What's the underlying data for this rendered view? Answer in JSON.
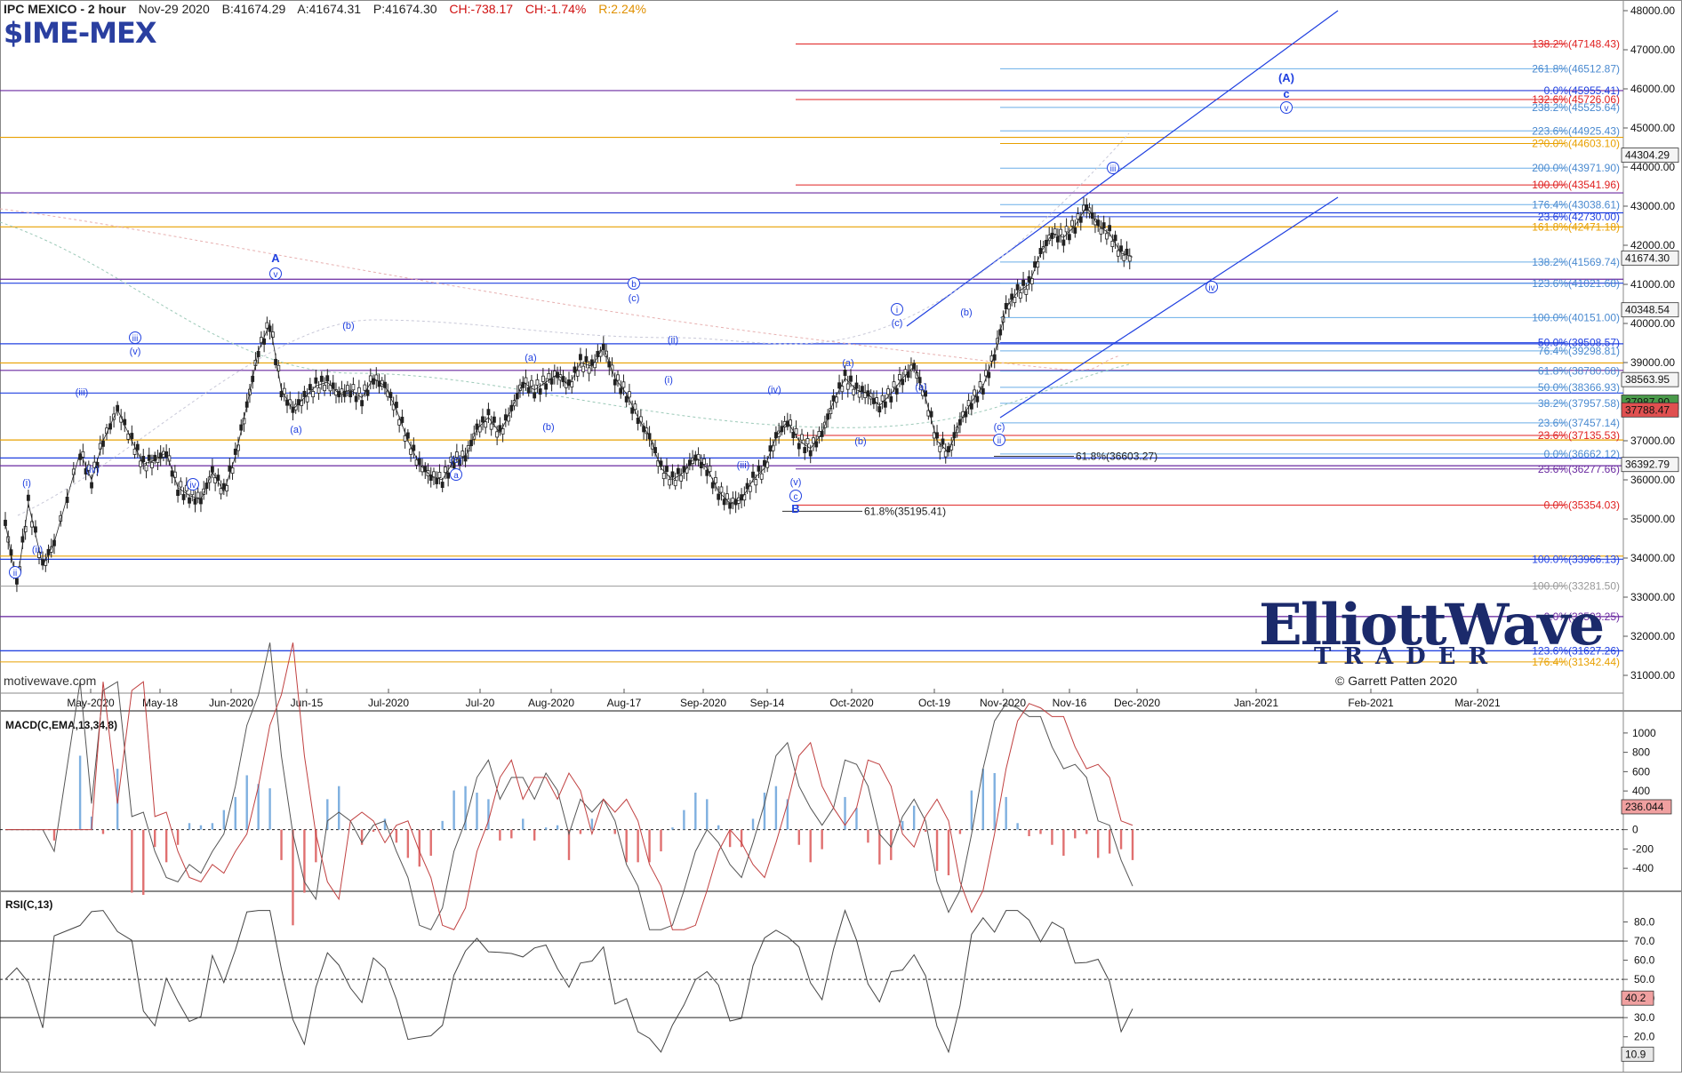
{
  "header": {
    "title": "IPC MEXICO - 2 hour",
    "date": "Nov-29 2020",
    "bid": "B:41674.29",
    "ask": "A:41674.31",
    "price": "P:41674.30",
    "change": "CH:-738.17",
    "change_pct": "CH:-1.74%",
    "range_pct": "R:2.24%",
    "symbol": "$IME-MEX",
    "source": "motivewave.com"
  },
  "colors": {
    "blue": "#2040e0",
    "red": "#e02020",
    "orange": "#e8a000",
    "purple": "#6a2aa0",
    "lightblue": "#6aaee8",
    "navy": "#1b2a6b",
    "candle": "#222222"
  },
  "logo": {
    "line1": "ElliottWave",
    "line2": "TRADER",
    "copyright": "© Garrett Patten 2020"
  },
  "chart_data": [
    {
      "type": "candlestick",
      "title": "IPC MEXICO - 2 hour",
      "ylim": [
        31000,
        48000
      ],
      "y_ticks": [
        "48000.00",
        "47000.00",
        "46000.00",
        "45000.00",
        "44000.00",
        "43000.00",
        "42000.00",
        "41000.00",
        "40000.00",
        "39000.00",
        "38000.00",
        "37000.00",
        "36000.00",
        "35000.00",
        "34000.00",
        "33000.00",
        "32000.00",
        "31000.00"
      ],
      "x_ticks": [
        "May-2020",
        "May-18",
        "Jun-2020",
        "Jun-15",
        "Jul-2020",
        "Jul-20",
        "Aug-2020",
        "Aug-17",
        "Sep-2020",
        "Sep-14",
        "Oct-2020",
        "Oct-19",
        "Nov-2020",
        "Nov-16",
        "Dec-2020",
        "Jan-2021",
        "Feb-2021",
        "Mar-2021"
      ],
      "price_path": [
        [
          0,
          34900
        ],
        [
          4,
          33300
        ],
        [
          8,
          35400
        ],
        [
          13,
          33800
        ],
        [
          17,
          34400
        ],
        [
          26,
          36700
        ],
        [
          30,
          36000
        ],
        [
          34,
          37000
        ],
        [
          39,
          37800
        ],
        [
          44,
          37000
        ],
        [
          48,
          36400
        ],
        [
          52,
          36500
        ],
        [
          56,
          36700
        ],
        [
          60,
          35800
        ],
        [
          64,
          35600
        ],
        [
          68,
          35500
        ],
        [
          72,
          36200
        ],
        [
          76,
          35700
        ],
        [
          80,
          36600
        ],
        [
          84,
          37900
        ],
        [
          88,
          39300
        ],
        [
          92,
          40000
        ],
        [
          96,
          38300
        ],
        [
          100,
          37800
        ],
        [
          104,
          38100
        ],
        [
          108,
          38400
        ],
        [
          112,
          38500
        ],
        [
          116,
          38200
        ],
        [
          120,
          38300
        ],
        [
          124,
          38100
        ],
        [
          128,
          38600
        ],
        [
          132,
          38400
        ],
        [
          136,
          37800
        ],
        [
          140,
          37000
        ],
        [
          144,
          36400
        ],
        [
          148,
          36100
        ],
        [
          152,
          36000
        ],
        [
          156,
          36500
        ],
        [
          160,
          36600
        ],
        [
          164,
          37300
        ],
        [
          168,
          37600
        ],
        [
          172,
          37200
        ],
        [
          176,
          37800
        ],
        [
          180,
          38500
        ],
        [
          184,
          38300
        ],
        [
          188,
          38500
        ],
        [
          192,
          38700
        ],
        [
          196,
          38400
        ],
        [
          200,
          39000
        ],
        [
          204,
          38900
        ],
        [
          208,
          39400
        ],
        [
          212,
          38600
        ],
        [
          216,
          38200
        ],
        [
          220,
          37600
        ],
        [
          224,
          37100
        ],
        [
          228,
          36300
        ],
        [
          232,
          36000
        ],
        [
          236,
          36200
        ],
        [
          240,
          36600
        ],
        [
          244,
          36300
        ],
        [
          248,
          35700
        ],
        [
          252,
          35400
        ],
        [
          256,
          35500
        ],
        [
          260,
          36000
        ],
        [
          264,
          36300
        ],
        [
          268,
          37100
        ],
        [
          272,
          37500
        ],
        [
          276,
          37000
        ],
        [
          280,
          36800
        ],
        [
          284,
          37200
        ],
        [
          288,
          38000
        ],
        [
          292,
          38600
        ],
        [
          296,
          38300
        ],
        [
          300,
          38200
        ],
        [
          304,
          37900
        ],
        [
          308,
          38200
        ],
        [
          312,
          38600
        ],
        [
          316,
          38900
        ],
        [
          320,
          38100
        ],
        [
          324,
          37000
        ],
        [
          328,
          36700
        ],
        [
          332,
          37500
        ],
        [
          336,
          38000
        ],
        [
          340,
          38400
        ],
        [
          344,
          39200
        ],
        [
          348,
          40400
        ],
        [
          352,
          40800
        ],
        [
          356,
          41000
        ],
        [
          360,
          41800
        ],
        [
          364,
          42300
        ],
        [
          368,
          42200
        ],
        [
          372,
          42500
        ],
        [
          376,
          43000
        ],
        [
          380,
          42500
        ],
        [
          384,
          42300
        ],
        [
          388,
          41800
        ],
        [
          392,
          41700
        ]
      ],
      "wave_labels": [
        {
          "text": "(A)",
          "x": 1447,
          "y": 92,
          "style": "paren-bold"
        },
        {
          "text": "c",
          "x": 1447,
          "y": 110,
          "style": "bold"
        },
        {
          "text": "v",
          "x": 1447,
          "y": 125,
          "style": "circle"
        },
        {
          "text": "iii",
          "x": 1252,
          "y": 193,
          "style": "circle"
        },
        {
          "text": "iv",
          "x": 1363,
          "y": 327,
          "style": "circle"
        },
        {
          "text": "A",
          "x": 310,
          "y": 295,
          "style": "bold"
        },
        {
          "text": "v",
          "x": 310,
          "y": 312,
          "style": "circle"
        },
        {
          "text": "B",
          "x": 895,
          "y": 577,
          "style": "bold"
        },
        {
          "text": "c",
          "x": 895,
          "y": 562,
          "style": "circle"
        },
        {
          "text": "(v)",
          "x": 895,
          "y": 546,
          "style": "paren"
        },
        {
          "text": "b",
          "x": 713,
          "y": 323,
          "style": "circle"
        },
        {
          "text": "(c)",
          "x": 713,
          "y": 339,
          "style": "paren"
        },
        {
          "text": "a",
          "x": 513,
          "y": 538,
          "style": "circle"
        },
        {
          "text": "(c)",
          "x": 513,
          "y": 521,
          "style": "paren"
        },
        {
          "text": "(b)",
          "x": 392,
          "y": 370,
          "style": "paren"
        },
        {
          "text": "(a)",
          "x": 333,
          "y": 487,
          "style": "paren"
        },
        {
          "text": "iii",
          "x": 152,
          "y": 384,
          "style": "circle"
        },
        {
          "text": "(v)",
          "x": 152,
          "y": 399,
          "style": "paren"
        },
        {
          "text": "(iii)",
          "x": 92,
          "y": 445,
          "style": "paren"
        },
        {
          "text": "(iv)",
          "x": 104,
          "y": 532,
          "style": "paren"
        },
        {
          "text": "iv",
          "x": 217,
          "y": 549,
          "style": "circle"
        },
        {
          "text": "(i)",
          "x": 30,
          "y": 547,
          "style": "paren"
        },
        {
          "text": "(ii)",
          "x": 42,
          "y": 622,
          "style": "paren"
        },
        {
          "text": "ii",
          "x": 17,
          "y": 648,
          "style": "circle"
        },
        {
          "text": "(a)",
          "x": 597,
          "y": 406,
          "style": "paren"
        },
        {
          "text": "(b)",
          "x": 617,
          "y": 484,
          "style": "paren"
        },
        {
          "text": "(ii)",
          "x": 757,
          "y": 386,
          "style": "paren"
        },
        {
          "text": "(i)",
          "x": 752,
          "y": 431,
          "style": "paren"
        },
        {
          "text": "(iii)",
          "x": 836,
          "y": 527,
          "style": "paren"
        },
        {
          "text": "(iv)",
          "x": 871,
          "y": 442,
          "style": "paren"
        },
        {
          "text": "i",
          "x": 1009,
          "y": 352,
          "style": "circle"
        },
        {
          "text": "(c)",
          "x": 1009,
          "y": 367,
          "style": "paren"
        },
        {
          "text": "(a)",
          "x": 954,
          "y": 412,
          "style": "paren"
        },
        {
          "text": "(b)",
          "x": 968,
          "y": 500,
          "style": "paren"
        },
        {
          "text": "(b)",
          "x": 1087,
          "y": 355,
          "style": "paren"
        },
        {
          "text": "(a)",
          "x": 1036,
          "y": 439,
          "style": "paren"
        },
        {
          "text": "(c)",
          "x": 1124,
          "y": 484,
          "style": "paren"
        },
        {
          "text": "ii",
          "x": 1124,
          "y": 499,
          "style": "circle"
        }
      ],
      "fib_levels": [
        {
          "label": "138.2%(47148.43)",
          "value": 47148.43,
          "color": "red",
          "x1": 895
        },
        {
          "label": "261.8%(46512.87)",
          "value": 46512.87,
          "color": "lightblue",
          "x1": 1125
        },
        {
          "label": "0.0%(45955.41)",
          "value": 45955.41,
          "color": "blue",
          "x1": 1125
        },
        {
          "label": "132.6%(45726.06)",
          "value": 45726.06,
          "color": "red",
          "x1": 895
        },
        {
          "label": "238.2%(45525.64)",
          "value": 45525.64,
          "color": "lightblue",
          "x1": 1125
        },
        {
          "label": "223.6%(44925.43)",
          "value": 44925.43,
          "color": "lightblue",
          "x1": 1125
        },
        {
          "label": "2?0.0%(44603.10)",
          "value": 44603.1,
          "color": "orange",
          "x1": 1125
        },
        {
          "label": "200.0%(43971.90)",
          "value": 43971.9,
          "color": "lightblue",
          "x1": 1125
        },
        {
          "label": "100.0%(43541.96)",
          "value": 43541.96,
          "color": "red",
          "x1": 895
        },
        {
          "label": "176.4%(43038.61)",
          "value": 43038.61,
          "color": "lightblue",
          "x1": 1125
        },
        {
          "label": "23.6%(42730.00)",
          "value": 42730.0,
          "color": "blue",
          "x1": 1125
        },
        {
          "label": "161.8%(42471.18)",
          "value": 42471.18,
          "color": "orange",
          "x1": 1125
        },
        {
          "label": "138.2%(41569.74)",
          "value": 41569.74,
          "color": "lightblue",
          "x1": 1125
        },
        {
          "label": "123.6%(41021.68)",
          "value": 41021.68,
          "color": "lightblue",
          "x1": 1125
        },
        {
          "label": "100.0%(40151.00)",
          "value": 40151.0,
          "color": "lightblue",
          "x1": 1125
        },
        {
          "label": "50.0%(39508.57)",
          "value": 39508.57,
          "color": "blue",
          "x1": 1125
        },
        {
          "label": "76.4%(39298.81)",
          "value": 39298.81,
          "color": "lightblue",
          "x1": 1125
        },
        {
          "label": "61.8%(38780.68)",
          "value": 38780.68,
          "color": "lightblue",
          "x1": 1125
        },
        {
          "label": "50.0%(38366.93)",
          "value": 38366.93,
          "color": "lightblue",
          "x1": 1125
        },
        {
          "label": "38.2%(37957.58)",
          "value": 37957.58,
          "color": "lightblue",
          "x1": 1125
        },
        {
          "label": "23.6%(37457.14)",
          "value": 37457.14,
          "color": "lightblue",
          "x1": 1125
        },
        {
          "label": "23.6%(37135.53)",
          "value": 37135.53,
          "color": "red",
          "x1": 895
        },
        {
          "label": "0.0%(36662.12)",
          "value": 36662.12,
          "color": "lightblue",
          "x1": 1125
        },
        {
          "label": "23.6%(36277.66)",
          "value": 36277.66,
          "color": "purple",
          "x1": 895
        },
        {
          "label": "0.0%(35354.03)",
          "value": 35354.03,
          "color": "red",
          "x1": 895
        },
        {
          "label": "100.0%(33966.13)",
          "value": 33966.13,
          "color": "blue",
          "x1": 0
        },
        {
          "label": "100.0%(33281.50)",
          "value": 33281.5,
          "color": "gray",
          "x1": 0
        },
        {
          "label": "0.0%(32503.25)",
          "value": 32503.25,
          "color": "purple",
          "x1": 0
        },
        {
          "label": "123.6%(31627.26)",
          "value": 31627.26,
          "color": "blue",
          "x1": 0
        },
        {
          "label": "176.4%(31342.44)",
          "value": 31342.44,
          "color": "orange",
          "x1": 0
        }
      ],
      "horizontal_lines": [
        {
          "value": 45955.41,
          "color": "purple"
        },
        {
          "value": 44760,
          "color": "orange"
        },
        {
          "value": 43340,
          "color": "purple"
        },
        {
          "value": 42830,
          "color": "blue"
        },
        {
          "value": 42470,
          "color": "orange"
        },
        {
          "value": 41130,
          "color": "purple"
        },
        {
          "value": 41030,
          "color": "blue"
        },
        {
          "value": 39480,
          "color": "blue"
        },
        {
          "value": 38990,
          "color": "orange"
        },
        {
          "value": 38800,
          "color": "purple"
        },
        {
          "value": 38220,
          "color": "blue"
        },
        {
          "value": 37020,
          "color": "orange"
        },
        {
          "value": 36560,
          "color": "blue"
        },
        {
          "value": 36360,
          "color": "purple"
        },
        {
          "value": 33970,
          "color": "blue"
        },
        {
          "value": 32503.25,
          "color": "purple"
        },
        {
          "value": 31627.26,
          "color": "blue"
        },
        {
          "value": 34050,
          "color": "orange"
        }
      ],
      "extension_labels": [
        {
          "label": "61.8%(36603.27)",
          "value": 36603.27
        },
        {
          "label": "61.8%(35195.41)",
          "value": 35195.41
        }
      ],
      "price_tags": [
        {
          "label": "44304.29",
          "value": 44304.29,
          "style": "box"
        },
        {
          "label": "41674.30",
          "value": 41674.3,
          "style": "box"
        },
        {
          "label": "40348.54",
          "value": 40348.54,
          "style": "box"
        },
        {
          "label": "38563.95",
          "value": 38563.95,
          "style": "box"
        },
        {
          "label": "37987.90",
          "value": 37987.9,
          "style": "green"
        },
        {
          "label": "37788.47",
          "value": 37788.47,
          "style": "red"
        },
        {
          "label": "36392.79",
          "value": 36392.79,
          "style": "box"
        }
      ]
    },
    {
      "type": "line",
      "title": "MACD(C,EMA,13,34,8)",
      "ylim": [
        -500,
        1100
      ],
      "y_ticks": [
        "1000",
        "800",
        "600",
        "400",
        "200",
        "0",
        "-200",
        "-400"
      ],
      "current_value": "236.044"
    },
    {
      "type": "line",
      "title": "RSI(C,13)",
      "ylim": [
        5,
        90
      ],
      "y_ticks": [
        "80.0",
        "70.0",
        "60.0",
        "50.0",
        "40.0",
        "30.0",
        "20.0"
      ],
      "current_value": "40.2",
      "secondary_value": "10.9",
      "levels": [
        70,
        50,
        30
      ]
    }
  ]
}
